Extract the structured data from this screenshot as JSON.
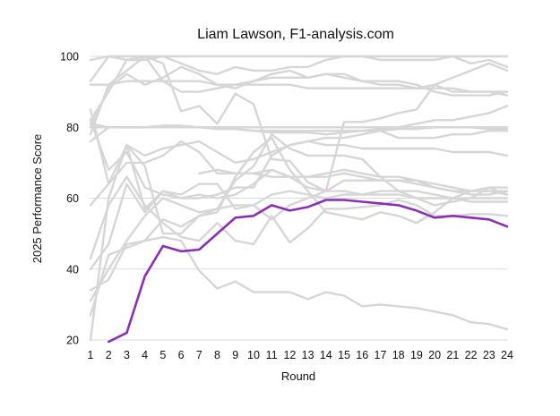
{
  "chart_data": {
    "type": "line",
    "title": "Liam Lawson, F1-analysis.com",
    "xlabel": "Round",
    "ylabel": "2025 Performance Score",
    "x": [
      1,
      2,
      3,
      4,
      5,
      6,
      7,
      8,
      9,
      10,
      11,
      12,
      13,
      14,
      15,
      16,
      17,
      18,
      19,
      20,
      21,
      22,
      23,
      24
    ],
    "x_ticks": [
      "1",
      "2",
      "3",
      "4",
      "5",
      "6",
      "7",
      "8",
      "9",
      "10",
      "11",
      "12",
      "13",
      "14",
      "15",
      "16",
      "17",
      "18",
      "19",
      "20",
      "21",
      "22",
      "23",
      "24"
    ],
    "y_ticks": [
      "20",
      "40",
      "60",
      "80",
      "100"
    ],
    "xlim": [
      1,
      24
    ],
    "ylim": [
      20,
      100
    ],
    "grid": "horizontal",
    "highlight_color": "#8a2fb5",
    "background_color": "#d6d6d6",
    "highlight": {
      "name": "Liam Lawson",
      "start_round": 2,
      "values": [
        19.5,
        22,
        38,
        46.5,
        45,
        45.5,
        50,
        54.5,
        55,
        58,
        56.5,
        57.5,
        59.5,
        59.5,
        59,
        58.5,
        58,
        56.5,
        54.5,
        55,
        54.5,
        54,
        52
      ]
    },
    "background_series": [
      {
        "start_round": 1,
        "values": [
          99,
          100,
          100,
          100,
          100,
          100,
          100,
          100,
          100,
          100,
          100,
          100,
          100,
          100,
          100,
          100,
          100,
          100,
          100,
          100,
          100,
          100,
          100,
          100
        ]
      },
      {
        "start_round": 1,
        "values": [
          93,
          100,
          99,
          99,
          100,
          98,
          96,
          95,
          97,
          96,
          96,
          97,
          97,
          99,
          100,
          100,
          99,
          99,
          99,
          99,
          100,
          98,
          99,
          97
        ]
      },
      {
        "start_round": 1,
        "values": [
          80,
          91,
          95,
          92,
          94,
          97,
          95,
          92,
          91,
          93,
          95,
          96,
          94,
          95,
          94,
          93,
          92,
          92,
          91,
          92,
          90,
          90,
          90,
          90
        ]
      },
      {
        "start_round": 1,
        "values": [
          92,
          92,
          93,
          93,
          93,
          93,
          93,
          92,
          92,
          92,
          92,
          92,
          91,
          91,
          91,
          91,
          91,
          91,
          91,
          91,
          91,
          90,
          90,
          89
        ]
      },
      {
        "start_round": 1,
        "values": [
          82,
          90,
          99,
          100,
          93,
          90,
          90,
          91,
          92,
          93,
          94,
          94,
          94,
          95,
          95,
          93,
          93,
          93,
          92,
          90,
          89,
          89,
          89,
          90
        ]
      },
      {
        "start_round": 1,
        "values": [
          78,
          92,
          96,
          100,
          98,
          84.5,
          86,
          81,
          89.5,
          86.5,
          71,
          70.5,
          64.5,
          62,
          81.5,
          81.5,
          82.5,
          84,
          85,
          92,
          94,
          96,
          98,
          96
        ]
      },
      {
        "start_round": 1,
        "values": [
          80,
          80,
          80,
          80,
          80,
          80,
          80,
          80,
          80,
          80,
          80,
          80,
          80,
          80,
          80,
          80,
          80,
          80,
          80,
          80,
          80,
          80,
          80,
          80
        ]
      },
      {
        "start_round": 1,
        "values": [
          81,
          80,
          80,
          80,
          80.5,
          80.5,
          80,
          80,
          79.5,
          79,
          79,
          79,
          79,
          79,
          79,
          79,
          79,
          79.5,
          79.5,
          80,
          80,
          80,
          79.5,
          79.5
        ]
      },
      {
        "start_round": 1,
        "values": [
          76,
          80,
          80,
          80,
          80,
          80,
          80,
          79.5,
          79.5,
          79,
          78.5,
          78.5,
          78.5,
          78,
          78.5,
          79,
          79.5,
          80,
          81,
          82,
          82,
          83,
          84,
          86
        ]
      },
      {
        "start_round": 3,
        "values": [
          75,
          72,
          74,
          75,
          76,
          73,
          70,
          71,
          73,
          75,
          76,
          75,
          75,
          74,
          74,
          74,
          74,
          74,
          73,
          73,
          73,
          72
        ]
      },
      {
        "start_round": 1,
        "values": [
          82,
          68,
          73,
          63,
          61,
          60,
          60,
          61,
          63,
          63,
          72,
          75,
          76,
          77,
          77,
          78,
          79,
          77,
          77,
          77,
          78,
          78,
          79,
          79
        ]
      },
      {
        "start_round": 1,
        "values": [
          58,
          64,
          75,
          57,
          62,
          60,
          61,
          60,
          61,
          64,
          68,
          66,
          63,
          62,
          65,
          65,
          65,
          65,
          64,
          63,
          62,
          61,
          61,
          62
        ]
      },
      {
        "start_round": 1,
        "values": [
          85,
          64,
          70,
          70,
          72,
          76,
          73,
          67,
          67,
          67,
          68,
          66,
          66,
          66,
          67,
          66,
          65,
          65,
          65,
          63,
          62,
          62,
          62,
          61
        ]
      },
      {
        "start_round": 7,
        "values": [
          67,
          68,
          67,
          67,
          66,
          66,
          66,
          67,
          68,
          67,
          66,
          66,
          65,
          64,
          63,
          62,
          62,
          62
        ]
      },
      {
        "start_round": 1,
        "values": [
          20,
          60,
          75,
          69,
          50,
          50,
          55,
          57,
          65,
          69,
          78,
          74,
          72,
          72,
          72,
          71,
          66,
          62,
          60,
          58,
          59,
          60,
          63,
          63
        ]
      },
      {
        "start_round": 1,
        "values": [
          27,
          44,
          46,
          48,
          54,
          52,
          55,
          56,
          66,
          73,
          77,
          68,
          62,
          56,
          55,
          54,
          56,
          55,
          53,
          56,
          60,
          62,
          63,
          61
        ]
      },
      {
        "start_round": 1,
        "values": [
          40,
          47,
          64,
          56,
          62,
          61,
          64,
          64,
          57,
          58,
          54,
          58,
          60,
          62,
          62,
          61,
          61,
          61,
          60,
          60,
          60,
          59,
          59,
          59
        ]
      },
      {
        "start_round": 1,
        "values": [
          31,
          40,
          48,
          55,
          60,
          58,
          56,
          57,
          58,
          58,
          61,
          62,
          61,
          60,
          61,
          61,
          62,
          62,
          62,
          61,
          60,
          60,
          60,
          60
        ]
      },
      {
        "start_round": 1,
        "values": [
          43,
          58,
          66,
          58,
          53,
          49,
          48,
          53,
          48,
          47,
          55,
          47.5,
          51.5,
          57,
          57,
          57.5,
          58,
          59.5,
          58,
          55,
          55,
          55.5,
          55.5,
          55
        ]
      },
      {
        "start_round": 1,
        "values": [
          34,
          37,
          47,
          48,
          49,
          48,
          39.5,
          34.5,
          36.5,
          33.5,
          33.5,
          33.5,
          31.5,
          33.5,
          32.5,
          29.5,
          30,
          29.5,
          29,
          28,
          27,
          25,
          24.5,
          23
        ]
      }
    ]
  }
}
